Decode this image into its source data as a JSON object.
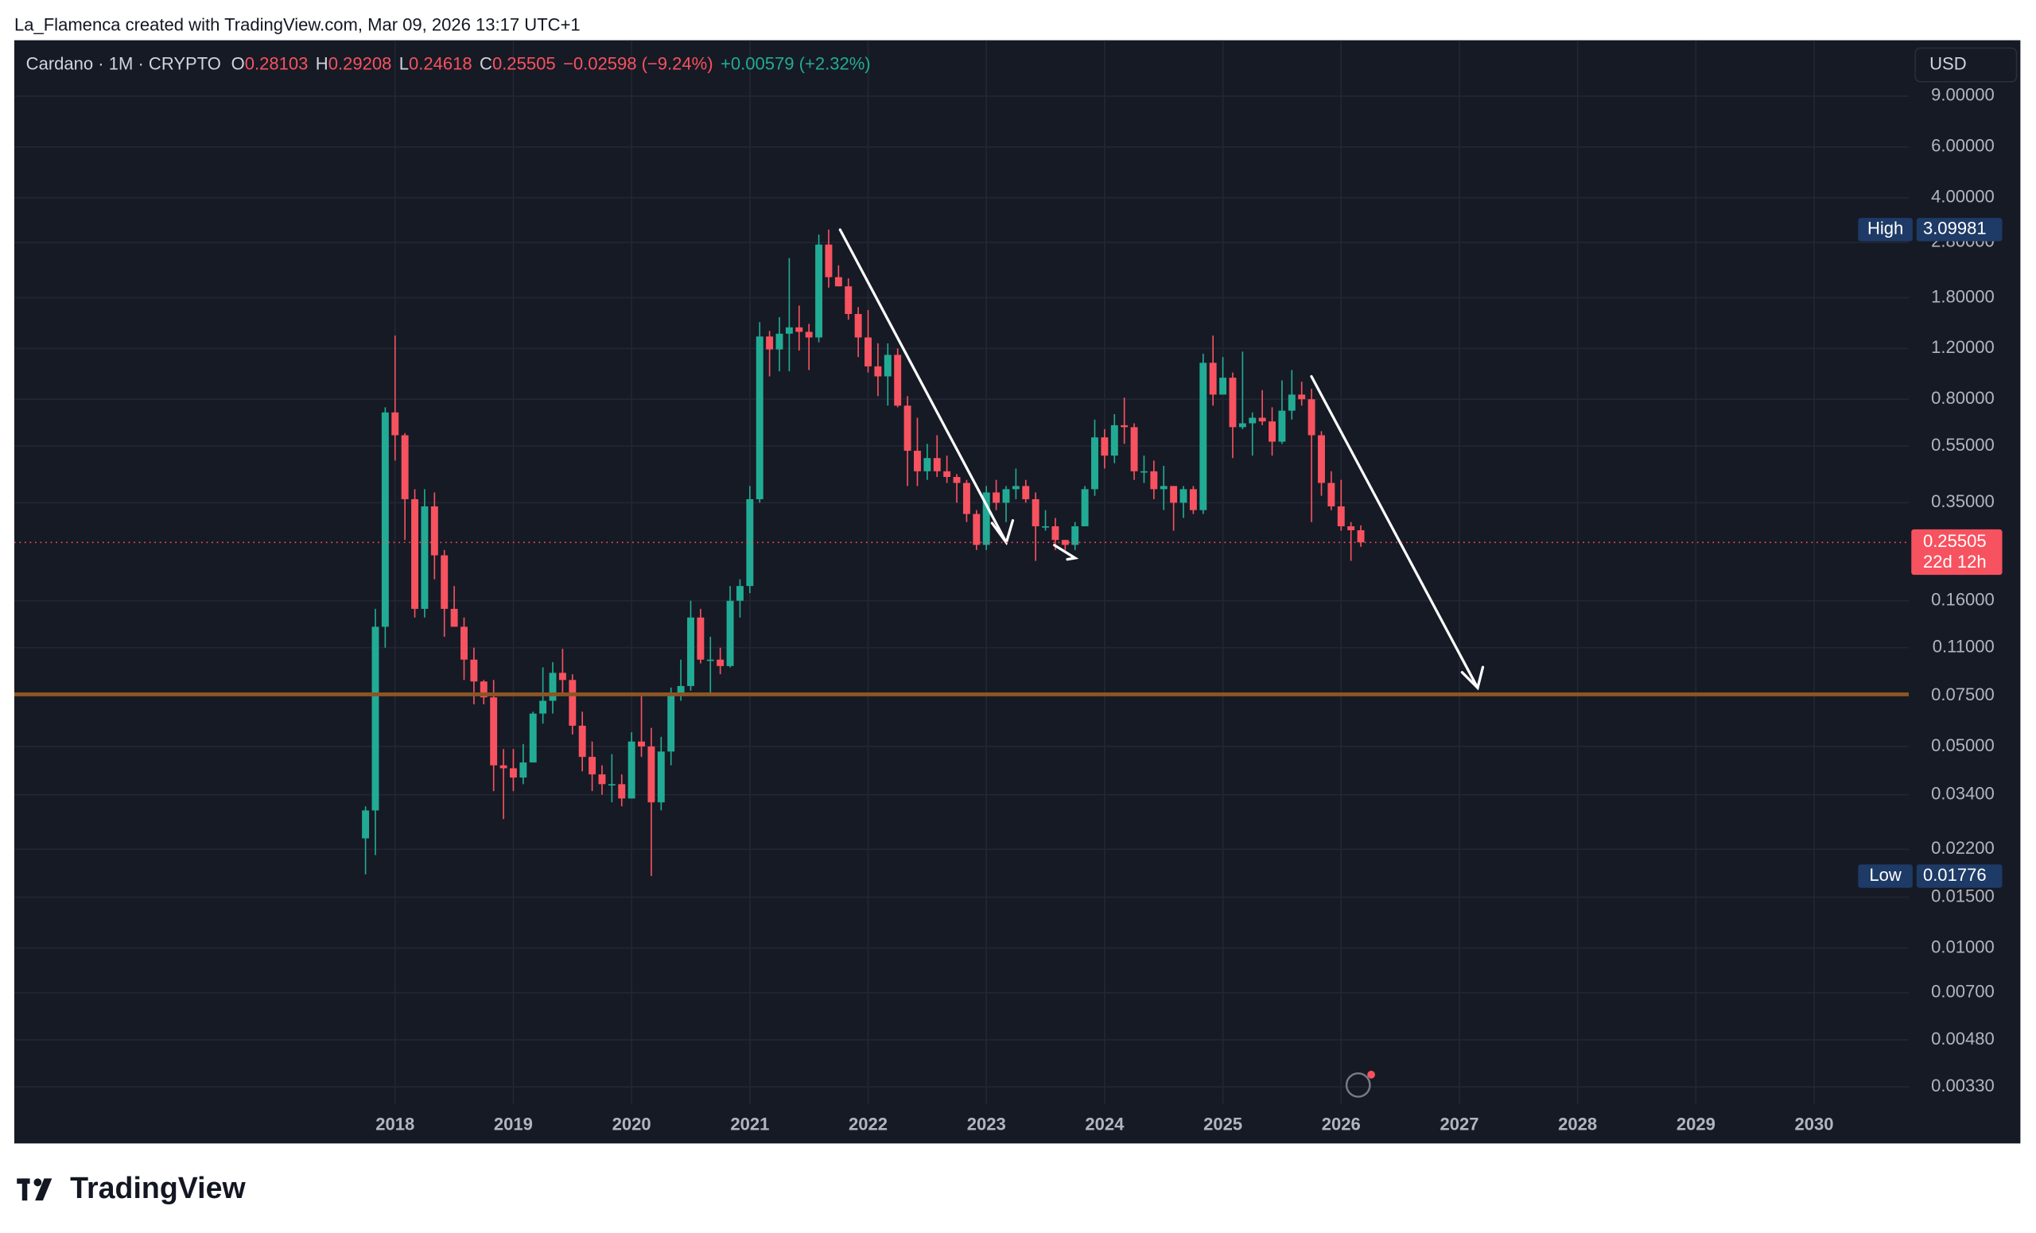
{
  "header": {
    "credit": "La_Flamenca created with TradingView.com, Mar 09, 2026 13:17 UTC+1"
  },
  "footer": {
    "brand": "TradingView"
  },
  "chart_data": {
    "type": "candlestick",
    "symbol": "Cardano · 1M · CRYPTO",
    "open_label": "O",
    "high_label": "H",
    "low_label": "L",
    "close_label": "C",
    "change": "−0.02598 (−9.24%)",
    "extended_change": "+0.00579 (+2.32%)",
    "currency": "USD",
    "high_marker": "High",
    "low_marker": "Low",
    "countdown": "22d 12h",
    "log_scale": true,
    "grid": true,
    "up_color": "#22ab94",
    "down_color": "#f7525f",
    "x": [
      "2017-10",
      "2017-11",
      "2017-12",
      "2018-01",
      "2018-02",
      "2018-03",
      "2018-04",
      "2018-05",
      "2018-06",
      "2018-07",
      "2018-08",
      "2018-09",
      "2018-10",
      "2018-11",
      "2018-12",
      "2019-01",
      "2019-02",
      "2019-03",
      "2019-04",
      "2019-05",
      "2019-06",
      "2019-07",
      "2019-08",
      "2019-09",
      "2019-10",
      "2019-11",
      "2019-12",
      "2020-01",
      "2020-02",
      "2020-03",
      "2020-04",
      "2020-05",
      "2020-06",
      "2020-07",
      "2020-08",
      "2020-09",
      "2020-10",
      "2020-11",
      "2020-12",
      "2021-01",
      "2021-02",
      "2021-03",
      "2021-04",
      "2021-05",
      "2021-06",
      "2021-07",
      "2021-08",
      "2021-09",
      "2021-10",
      "2021-11",
      "2021-12",
      "2022-01",
      "2022-02",
      "2022-03",
      "2022-04",
      "2022-05",
      "2022-06",
      "2022-07",
      "2022-08",
      "2022-09",
      "2022-10",
      "2022-11",
      "2022-12",
      "2023-01",
      "2023-02",
      "2023-03",
      "2023-04",
      "2023-05",
      "2023-06",
      "2023-07",
      "2023-08",
      "2023-09",
      "2023-10",
      "2023-11",
      "2023-12",
      "2024-01",
      "2024-02",
      "2024-03",
      "2024-04",
      "2024-05",
      "2024-06",
      "2024-07",
      "2024-08",
      "2024-09",
      "2024-10",
      "2024-11",
      "2024-12",
      "2025-01",
      "2025-02",
      "2025-03",
      "2025-04",
      "2025-05",
      "2025-06",
      "2025-07",
      "2025-08",
      "2025-09",
      "2025-10",
      "2025-11",
      "2025-12",
      "2026-01",
      "2026-02",
      "2026-03"
    ],
    "open": [
      0.024,
      0.03,
      0.13,
      0.72,
      0.6,
      0.36,
      0.15,
      0.34,
      0.23,
      0.15,
      0.13,
      0.1,
      0.084,
      0.074,
      0.043,
      0.042,
      0.039,
      0.044,
      0.065,
      0.072,
      0.09,
      0.085,
      0.059,
      0.046,
      0.04,
      0.037,
      0.037,
      0.033,
      0.052,
      0.05,
      0.032,
      0.048,
      0.076,
      0.081,
      0.14,
      0.1,
      0.1,
      0.095,
      0.16,
      0.18,
      0.36,
      1.32,
      1.19,
      1.35,
      1.42,
      1.37,
      1.31,
      2.75,
      2.12,
      1.97,
      1.58,
      1.31,
      1.04,
      0.96,
      1.14,
      0.76,
      0.53,
      0.45,
      0.5,
      0.45,
      0.43,
      0.41,
      0.32,
      0.25,
      0.38,
      0.35,
      0.39,
      0.4,
      0.36,
      0.29,
      0.29,
      0.26,
      0.25,
      0.29,
      0.39,
      0.59,
      0.51,
      0.65,
      0.64,
      0.45,
      0.45,
      0.39,
      0.4,
      0.35,
      0.39,
      0.33,
      1.07,
      0.83,
      0.95,
      0.64,
      0.66,
      0.69,
      0.67,
      0.57,
      0.73,
      0.83,
      0.8,
      0.6,
      0.41,
      0.34,
      0.29,
      0.28103
    ],
    "high": [
      0.031,
      0.15,
      0.75,
      1.33,
      0.61,
      0.39,
      0.39,
      0.38,
      0.24,
      0.18,
      0.14,
      0.11,
      0.085,
      0.085,
      0.049,
      0.049,
      0.051,
      0.066,
      0.094,
      0.098,
      0.109,
      0.089,
      0.066,
      0.052,
      0.043,
      0.047,
      0.04,
      0.056,
      0.077,
      0.058,
      0.054,
      0.08,
      0.1,
      0.16,
      0.15,
      0.12,
      0.11,
      0.18,
      0.19,
      0.4,
      1.48,
      1.38,
      1.54,
      2.47,
      1.69,
      1.46,
      2.98,
      3.09981,
      2.33,
      2.1,
      1.67,
      1.63,
      1.25,
      1.25,
      1.2,
      0.82,
      0.69,
      0.56,
      0.6,
      0.51,
      0.44,
      0.42,
      0.33,
      0.4,
      0.42,
      0.4,
      0.46,
      0.42,
      0.38,
      0.33,
      0.31,
      0.26,
      0.3,
      0.4,
      0.68,
      0.63,
      0.71,
      0.81,
      0.66,
      0.51,
      0.49,
      0.47,
      0.4,
      0.4,
      0.4,
      1.15,
      1.33,
      1.12,
      0.99,
      1.17,
      0.72,
      0.86,
      0.75,
      0.93,
      1.01,
      0.92,
      0.87,
      0.62,
      0.45,
      0.42,
      0.3,
      0.29208
    ],
    "low": [
      0.018,
      0.021,
      0.11,
      0.49,
      0.26,
      0.14,
      0.14,
      0.19,
      0.12,
      0.13,
      0.085,
      0.07,
      0.07,
      0.035,
      0.028,
      0.035,
      0.037,
      0.044,
      0.06,
      0.065,
      0.075,
      0.055,
      0.041,
      0.035,
      0.034,
      0.032,
      0.031,
      0.033,
      0.046,
      0.01776,
      0.03,
      0.043,
      0.072,
      0.078,
      0.097,
      0.076,
      0.089,
      0.094,
      0.14,
      0.17,
      0.35,
      0.96,
      1.0,
      1.0,
      1.18,
      1.01,
      1.26,
      1.95,
      1.97,
      1.51,
      1.12,
      0.99,
      0.82,
      0.76,
      0.75,
      0.4,
      0.4,
      0.42,
      0.43,
      0.41,
      0.35,
      0.3,
      0.24,
      0.24,
      0.33,
      0.3,
      0.36,
      0.35,
      0.22,
      0.28,
      0.24,
      0.24,
      0.24,
      0.29,
      0.37,
      0.46,
      0.48,
      0.56,
      0.42,
      0.41,
      0.36,
      0.33,
      0.28,
      0.31,
      0.32,
      0.32,
      0.76,
      0.84,
      0.5,
      0.63,
      0.51,
      0.65,
      0.51,
      0.56,
      0.68,
      0.76,
      0.3,
      0.37,
      0.33,
      0.28,
      0.22,
      0.24618
    ],
    "close": [
      0.03,
      0.13,
      0.72,
      0.6,
      0.36,
      0.15,
      0.34,
      0.23,
      0.15,
      0.13,
      0.1,
      0.084,
      0.074,
      0.043,
      0.042,
      0.039,
      0.044,
      0.065,
      0.072,
      0.09,
      0.085,
      0.059,
      0.046,
      0.04,
      0.037,
      0.037,
      0.033,
      0.052,
      0.05,
      0.032,
      0.048,
      0.076,
      0.081,
      0.14,
      0.1,
      0.1,
      0.095,
      0.16,
      0.18,
      0.36,
      1.32,
      1.19,
      1.35,
      1.42,
      1.37,
      1.31,
      2.75,
      2.12,
      1.97,
      1.58,
      1.31,
      1.04,
      0.96,
      1.14,
      0.76,
      0.53,
      0.45,
      0.5,
      0.45,
      0.43,
      0.41,
      0.32,
      0.25,
      0.38,
      0.35,
      0.39,
      0.4,
      0.36,
      0.29,
      0.29,
      0.26,
      0.25,
      0.29,
      0.39,
      0.59,
      0.51,
      0.65,
      0.64,
      0.45,
      0.45,
      0.39,
      0.4,
      0.35,
      0.39,
      0.33,
      1.07,
      0.83,
      0.95,
      0.64,
      0.66,
      0.69,
      0.67,
      0.57,
      0.73,
      0.83,
      0.8,
      0.6,
      0.41,
      0.34,
      0.29,
      0.28103,
      0.25505
    ],
    "xlim": [
      2014.78,
      2030.8
    ],
    "xticks": [
      2018,
      2019,
      2020,
      2021,
      2022,
      2023,
      2024,
      2025,
      2026,
      2027,
      2028,
      2029,
      2030
    ],
    "ylim": [
      0.0021,
      14.06
    ],
    "yticks": [
      {
        "value": 9,
        "label": "9.00000"
      },
      {
        "value": 6,
        "label": "6.00000"
      },
      {
        "value": 4,
        "label": "4.00000"
      },
      {
        "value": 2.8,
        "label": "2.80000"
      },
      {
        "value": 1.8,
        "label": "1.80000"
      },
      {
        "value": 1.2,
        "label": "1.20000"
      },
      {
        "value": 0.8,
        "label": "0.80000"
      },
      {
        "value": 0.55,
        "label": "0.55000"
      },
      {
        "value": 0.35,
        "label": "0.35000"
      },
      {
        "value": 0.16,
        "label": "0.16000"
      },
      {
        "value": 0.11,
        "label": "0.11000"
      },
      {
        "value": 0.075,
        "label": "0.07500"
      },
      {
        "value": 0.05,
        "label": "0.05000"
      },
      {
        "value": 0.034,
        "label": "0.03400"
      },
      {
        "value": 0.022,
        "label": "0.02200"
      },
      {
        "value": 0.015,
        "label": "0.01500"
      },
      {
        "value": 0.01,
        "label": "0.01000"
      },
      {
        "value": 0.007,
        "label": "0.00700"
      },
      {
        "value": 0.0048,
        "label": "0.00480"
      },
      {
        "value": 0.0033,
        "label": "0.00330"
      }
    ]
  }
}
